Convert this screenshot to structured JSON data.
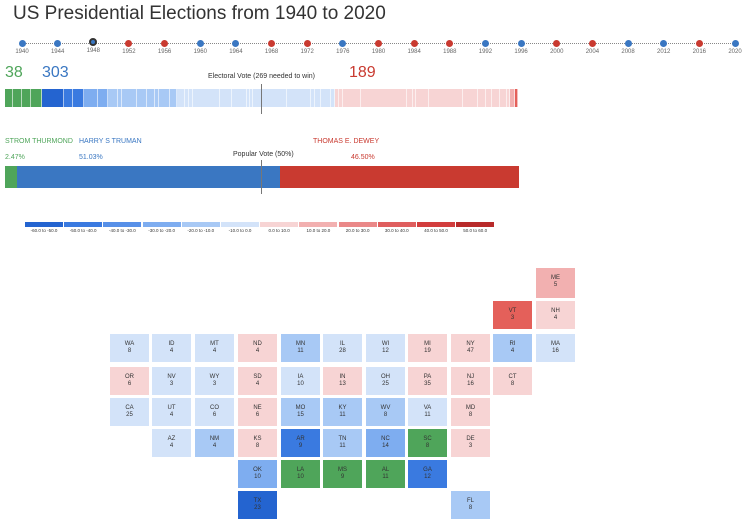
{
  "title": "US Presidential Elections from 1940 to 2020",
  "timeline": [
    {
      "year": "1940",
      "party": "d"
    },
    {
      "year": "1944",
      "party": "d"
    },
    {
      "year": "1948",
      "party": "d",
      "selected": true
    },
    {
      "year": "1952",
      "party": "r"
    },
    {
      "year": "1956",
      "party": "r"
    },
    {
      "year": "1960",
      "party": "d"
    },
    {
      "year": "1964",
      "party": "d"
    },
    {
      "year": "1968",
      "party": "r"
    },
    {
      "year": "1972",
      "party": "r"
    },
    {
      "year": "1976",
      "party": "d"
    },
    {
      "year": "1980",
      "party": "r"
    },
    {
      "year": "1984",
      "party": "r"
    },
    {
      "year": "1988",
      "party": "r"
    },
    {
      "year": "1992",
      "party": "d"
    },
    {
      "year": "1996",
      "party": "d"
    },
    {
      "year": "2000",
      "party": "r"
    },
    {
      "year": "2004",
      "party": "r"
    },
    {
      "year": "2008",
      "party": "d"
    },
    {
      "year": "2012",
      "party": "d"
    },
    {
      "year": "2016",
      "party": "r"
    },
    {
      "year": "2020",
      "party": "d"
    }
  ],
  "electoral": {
    "third": "38",
    "dem": "303",
    "rep": "189",
    "label": "Electoral Vote (269 needed to win)"
  },
  "popular": {
    "third_name": "STROM THURMOND",
    "dem_name": "HARRY S TRUMAN",
    "rep_name": "THOMAS E. DEWEY",
    "third_pct": "2.47%",
    "dem_pct": "51.03%",
    "rep_pct": "46.50%",
    "label": "Popular Vote (50%)"
  },
  "legend": [
    {
      "label": "-60.0 to -50.0",
      "color": "#2464d0"
    },
    {
      "label": "-50.0 to -40.0",
      "color": "#3a7ae0"
    },
    {
      "label": "-40.0 to -30.0",
      "color": "#5790e8"
    },
    {
      "label": "-30.0 to -20.0",
      "color": "#7eadf0"
    },
    {
      "label": "-20.0 to -10.0",
      "color": "#a8c9f5"
    },
    {
      "label": "-10.0 to 0.0",
      "color": "#d3e3f9"
    },
    {
      "label": "0.0 to 10.0",
      "color": "#f7d4d4"
    },
    {
      "label": "10.0 to 20.0",
      "color": "#f2b0b0"
    },
    {
      "label": "20.0 to 30.0",
      "color": "#ea8888"
    },
    {
      "label": "30.0 to 40.0",
      "color": "#df5e5e"
    },
    {
      "label": "40.0 to 50.0",
      "color": "#d23d3d"
    },
    {
      "label": "50.0 to 60.0",
      "color": "#b82a2a"
    }
  ],
  "party_colors": {
    "d": "#3a77c2",
    "r": "#c93a30",
    "third": "#4fa55a"
  },
  "states": [
    {
      "ab": "ME",
      "ev": "5",
      "row": 0,
      "col": 12,
      "c": "#f2b0b0"
    },
    {
      "ab": "VT",
      "ev": "3",
      "row": 1,
      "col": 11,
      "c": "#e4605a"
    },
    {
      "ab": "NH",
      "ev": "4",
      "row": 1,
      "col": 12,
      "c": "#f7d4d4"
    },
    {
      "ab": "WA",
      "ev": "8",
      "row": 2,
      "col": 2,
      "c": "#d3e3f9"
    },
    {
      "ab": "ID",
      "ev": "4",
      "row": 2,
      "col": 3,
      "c": "#d3e3f9"
    },
    {
      "ab": "MT",
      "ev": "4",
      "row": 2,
      "col": 4,
      "c": "#d3e3f9"
    },
    {
      "ab": "ND",
      "ev": "4",
      "row": 2,
      "col": 5,
      "c": "#f7d4d4"
    },
    {
      "ab": "MN",
      "ev": "11",
      "row": 2,
      "col": 6,
      "c": "#a8c9f5"
    },
    {
      "ab": "IL",
      "ev": "28",
      "row": 2,
      "col": 7,
      "c": "#d3e3f9"
    },
    {
      "ab": "WI",
      "ev": "12",
      "row": 2,
      "col": 8,
      "c": "#d3e3f9"
    },
    {
      "ab": "MI",
      "ev": "19",
      "row": 2,
      "col": 9,
      "c": "#f7d4d4"
    },
    {
      "ab": "NY",
      "ev": "47",
      "row": 2,
      "col": 10,
      "c": "#f7d4d4"
    },
    {
      "ab": "RI",
      "ev": "4",
      "row": 2,
      "col": 11,
      "c": "#a8c9f5"
    },
    {
      "ab": "MA",
      "ev": "16",
      "row": 2,
      "col": 12,
      "c": "#d3e3f9"
    },
    {
      "ab": "OR",
      "ev": "6",
      "row": 3,
      "col": 2,
      "c": "#f7d4d4"
    },
    {
      "ab": "NV",
      "ev": "3",
      "row": 3,
      "col": 3,
      "c": "#d3e3f9"
    },
    {
      "ab": "WY",
      "ev": "3",
      "row": 3,
      "col": 4,
      "c": "#d3e3f9"
    },
    {
      "ab": "SD",
      "ev": "4",
      "row": 3,
      "col": 5,
      "c": "#f7d4d4"
    },
    {
      "ab": "IA",
      "ev": "10",
      "row": 3,
      "col": 6,
      "c": "#d3e3f9"
    },
    {
      "ab": "IN",
      "ev": "13",
      "row": 3,
      "col": 7,
      "c": "#f7d4d4"
    },
    {
      "ab": "OH",
      "ev": "25",
      "row": 3,
      "col": 8,
      "c": "#d3e3f9"
    },
    {
      "ab": "PA",
      "ev": "35",
      "row": 3,
      "col": 9,
      "c": "#f7d4d4"
    },
    {
      "ab": "NJ",
      "ev": "16",
      "row": 3,
      "col": 10,
      "c": "#f7d4d4"
    },
    {
      "ab": "CT",
      "ev": "8",
      "row": 3,
      "col": 11,
      "c": "#f7d4d4"
    },
    {
      "ab": "CA",
      "ev": "25",
      "row": 4,
      "col": 2,
      "c": "#d3e3f9"
    },
    {
      "ab": "UT",
      "ev": "4",
      "row": 4,
      "col": 3,
      "c": "#d3e3f9"
    },
    {
      "ab": "CO",
      "ev": "6",
      "row": 4,
      "col": 4,
      "c": "#d3e3f9"
    },
    {
      "ab": "NE",
      "ev": "6",
      "row": 4,
      "col": 5,
      "c": "#f7d4d4"
    },
    {
      "ab": "MO",
      "ev": "15",
      "row": 4,
      "col": 6,
      "c": "#a8c9f5"
    },
    {
      "ab": "KY",
      "ev": "11",
      "row": 4,
      "col": 7,
      "c": "#a8c9f5"
    },
    {
      "ab": "WV",
      "ev": "8",
      "row": 4,
      "col": 8,
      "c": "#a8c9f5"
    },
    {
      "ab": "VA",
      "ev": "11",
      "row": 4,
      "col": 9,
      "c": "#d3e3f9"
    },
    {
      "ab": "MD",
      "ev": "8",
      "row": 4,
      "col": 10,
      "c": "#f7d4d4"
    },
    {
      "ab": "AZ",
      "ev": "4",
      "row": 5,
      "col": 3,
      "c": "#d3e3f9"
    },
    {
      "ab": "NM",
      "ev": "4",
      "row": 5,
      "col": 4,
      "c": "#a8c9f5"
    },
    {
      "ab": "KS",
      "ev": "8",
      "row": 5,
      "col": 5,
      "c": "#f7d4d4"
    },
    {
      "ab": "AR",
      "ev": "9",
      "row": 5,
      "col": 6,
      "c": "#3a7ae0"
    },
    {
      "ab": "TN",
      "ev": "11",
      "row": 5,
      "col": 7,
      "c": "#a8c9f5"
    },
    {
      "ab": "NC",
      "ev": "14",
      "row": 5,
      "col": 8,
      "c": "#7eadf0"
    },
    {
      "ab": "SC",
      "ev": "8",
      "row": 5,
      "col": 9,
      "c": "#4fa55a"
    },
    {
      "ab": "DE",
      "ev": "3",
      "row": 5,
      "col": 10,
      "c": "#f7d4d4"
    },
    {
      "ab": "OK",
      "ev": "10",
      "row": 6,
      "col": 5,
      "c": "#7eadf0"
    },
    {
      "ab": "LA",
      "ev": "10",
      "row": 6,
      "col": 6,
      "c": "#4fa55a"
    },
    {
      "ab": "MS",
      "ev": "9",
      "row": 6,
      "col": 7,
      "c": "#4fa55a"
    },
    {
      "ab": "AL",
      "ev": "11",
      "row": 6,
      "col": 8,
      "c": "#4fa55a"
    },
    {
      "ab": "GA",
      "ev": "12",
      "row": 6,
      "col": 9,
      "c": "#3a7ae0"
    },
    {
      "ab": "TX",
      "ev": "23",
      "row": 7,
      "col": 5,
      "c": "#2464d0"
    },
    {
      "ab": "FL",
      "ev": "8",
      "row": 7,
      "col": 10,
      "c": "#a8c9f5"
    }
  ]
}
